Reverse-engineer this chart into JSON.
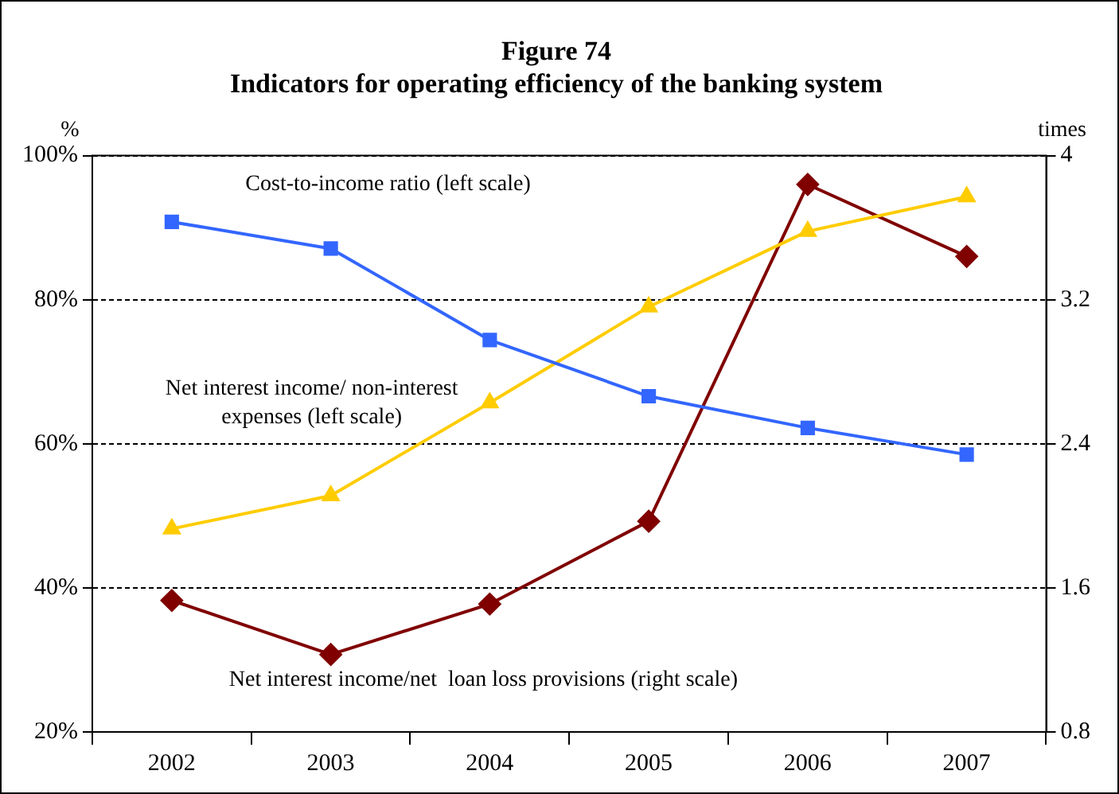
{
  "chart_data": {
    "type": "line",
    "title": "Figure 74",
    "subtitle": "Indicators for operating efficiency of the banking system",
    "ylabel": "%",
    "y2label": "times",
    "categories": [
      "2002",
      "2003",
      "2004",
      "2005",
      "2006",
      "2007"
    ],
    "series": [
      {
        "name": "Cost-to-income ratio (left scale)",
        "color": "#3366ff",
        "marker": "square",
        "values": [
          90.8,
          87.1,
          74.4,
          66.6,
          62.2,
          58.5
        ]
      },
      {
        "name": "Net interest income/ non-interest expenses (left scale)",
        "color": "#ffcc00",
        "marker": "triangle",
        "values": [
          48.2,
          52.8,
          65.7,
          79.0,
          89.5,
          94.3
        ]
      },
      {
        "name": "Net interest income/net  loan loss provisions (right scale)",
        "color": "#800000",
        "marker": "diamond",
        "axis": "y2",
        "values": [
          1.53,
          1.23,
          1.51,
          1.97,
          3.84,
          3.44
        ]
      }
    ],
    "ylim": [
      20,
      100
    ],
    "yticks": [
      {
        "value": 20,
        "label": "20%"
      },
      {
        "value": 40,
        "label": "40%"
      },
      {
        "value": 60,
        "label": "60%"
      },
      {
        "value": 80,
        "label": "80%"
      },
      {
        "value": 100,
        "label": "100%"
      }
    ],
    "y2lim": [
      0.8,
      4
    ],
    "y2ticks": [
      0.8,
      1.6,
      2.4,
      3.2,
      4
    ],
    "grid": "y",
    "legend": false
  }
}
